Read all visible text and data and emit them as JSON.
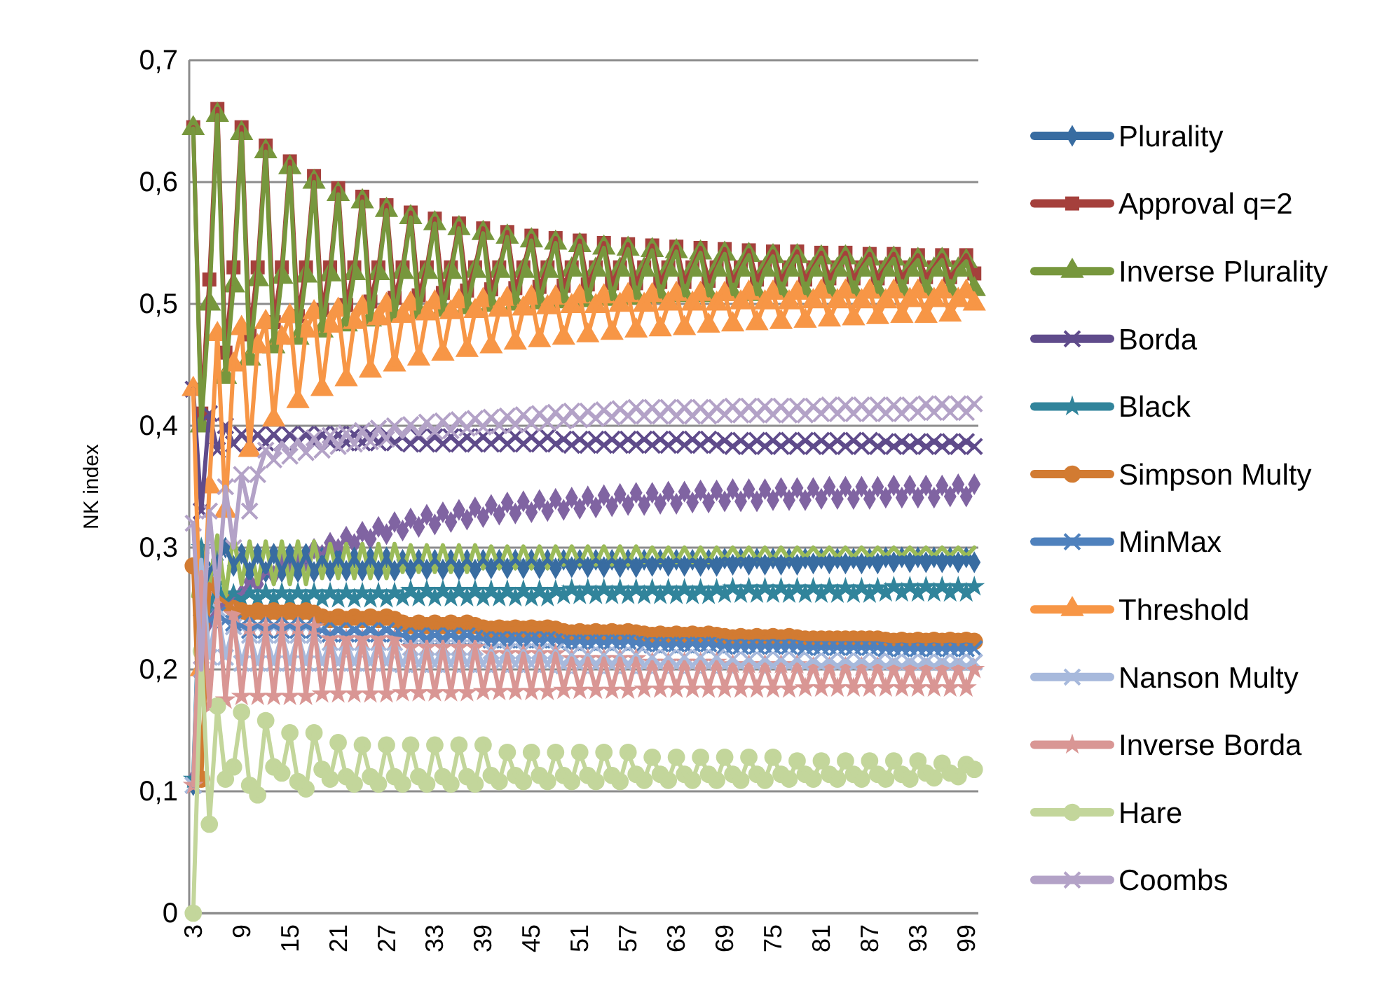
{
  "chart_data": {
    "type": "line",
    "ylabel": "NK index",
    "legend": "right",
    "grid": "y",
    "line_style": "solid",
    "ylim": [
      0,
      0.7
    ],
    "yticks": [
      0,
      {
        "value": 0.1,
        "label": "0,1"
      },
      {
        "value": 0.2,
        "label": "0,2"
      },
      {
        "value": 0.3,
        "label": "0,3"
      },
      {
        "value": 0.4,
        "label": "0,4"
      },
      {
        "value": 0.5,
        "label": "0,5"
      },
      {
        "value": 0.6,
        "label": "0,6"
      },
      {
        "value": 0.7,
        "label": "0,7"
      }
    ],
    "xlim": [
      2.5,
      100.5
    ],
    "xticks": [
      3,
      9,
      15,
      21,
      27,
      33,
      39,
      45,
      51,
      57,
      63,
      69,
      75,
      81,
      87,
      93,
      99
    ],
    "x": [
      3,
      4,
      5,
      6,
      7,
      8,
      9,
      10,
      11,
      12,
      13,
      14,
      15,
      16,
      17,
      18,
      19,
      20,
      21,
      22,
      23,
      24,
      25,
      26,
      27,
      28,
      29,
      30,
      31,
      32,
      33,
      34,
      35,
      36,
      37,
      38,
      39,
      40,
      41,
      42,
      43,
      44,
      45,
      46,
      47,
      48,
      49,
      50,
      51,
      52,
      53,
      54,
      55,
      56,
      57,
      58,
      59,
      60,
      61,
      62,
      63,
      64,
      65,
      66,
      67,
      68,
      69,
      70,
      71,
      72,
      73,
      74,
      75,
      76,
      77,
      78,
      79,
      80,
      81,
      82,
      83,
      84,
      85,
      86,
      87,
      88,
      89,
      90,
      91,
      92,
      93,
      94,
      95,
      96,
      97,
      98,
      99,
      100
    ],
    "series": [
      {
        "color": "#8064a2",
        "marker": "diamond",
        "values": [
          0.11,
          0.2,
          0.24,
          0.25,
          0.255,
          0.26,
          0.262,
          0.272,
          0.27,
          0.28,
          0.277,
          0.287,
          0.283,
          0.293,
          0.289,
          0.299,
          0.294,
          0.304,
          0.299,
          0.309,
          0.303,
          0.313,
          0.307,
          0.317,
          0.311,
          0.321,
          0.314,
          0.324,
          0.317,
          0.327,
          0.319,
          0.329,
          0.321,
          0.331,
          0.323,
          0.333,
          0.325,
          0.335,
          0.327,
          0.337,
          0.328,
          0.338,
          0.329,
          0.339,
          0.33,
          0.34,
          0.331,
          0.341,
          0.332,
          0.342,
          0.333,
          0.343,
          0.334,
          0.344,
          0.335,
          0.345,
          0.335,
          0.345,
          0.336,
          0.346,
          0.336,
          0.346,
          0.337,
          0.347,
          0.337,
          0.347,
          0.338,
          0.348,
          0.338,
          0.348,
          0.338,
          0.348,
          0.339,
          0.349,
          0.339,
          0.349,
          0.339,
          0.349,
          0.34,
          0.35,
          0.34,
          0.35,
          0.34,
          0.35,
          0.34,
          0.35,
          0.341,
          0.351,
          0.341,
          0.351,
          0.341,
          0.351,
          0.341,
          0.351,
          0.342,
          0.352,
          0.342,
          0.352
        ]
      },
      {
        "color": "#9bbb59",
        "marker": "none",
        "values": [
          0.26,
          0.3,
          0.27,
          0.31,
          0.26,
          0.31,
          0.27,
          0.305,
          0.27,
          0.305,
          0.27,
          0.305,
          0.27,
          0.305,
          0.27,
          0.305,
          0.275,
          0.303,
          0.275,
          0.303,
          0.275,
          0.303,
          0.275,
          0.303,
          0.275,
          0.303,
          0.28,
          0.302,
          0.28,
          0.302,
          0.28,
          0.302,
          0.28,
          0.302,
          0.28,
          0.302,
          0.283,
          0.301,
          0.283,
          0.301,
          0.283,
          0.301,
          0.283,
          0.301,
          0.283,
          0.301,
          0.286,
          0.301,
          0.286,
          0.301,
          0.286,
          0.301,
          0.286,
          0.301,
          0.286,
          0.301,
          0.288,
          0.3,
          0.288,
          0.3,
          0.288,
          0.3,
          0.288,
          0.3,
          0.288,
          0.3,
          0.29,
          0.3,
          0.29,
          0.3,
          0.29,
          0.3,
          0.29,
          0.3,
          0.29,
          0.3,
          0.292,
          0.3,
          0.292,
          0.3,
          0.292,
          0.3,
          0.292,
          0.3,
          0.292,
          0.3,
          0.293,
          0.3,
          0.293,
          0.3,
          0.293,
          0.3,
          0.293,
          0.3,
          0.293,
          0.3,
          0.293,
          0.3
        ]
      },
      {
        "name": "Plurality",
        "color": "#386ca1",
        "marker": "diamond",
        "values": [
          0.105,
          0.26,
          0.28,
          0.29,
          0.3,
          0.285,
          0.295,
          0.28,
          0.295,
          0.28,
          0.295,
          0.28,
          0.295,
          0.28,
          0.295,
          0.28,
          0.292,
          0.281,
          0.292,
          0.281,
          0.292,
          0.281,
          0.292,
          0.281,
          0.292,
          0.281,
          0.29,
          0.282,
          0.29,
          0.282,
          0.29,
          0.282,
          0.29,
          0.282,
          0.29,
          0.282,
          0.29,
          0.283,
          0.29,
          0.283,
          0.29,
          0.283,
          0.29,
          0.283,
          0.29,
          0.283,
          0.29,
          0.284,
          0.29,
          0.284,
          0.29,
          0.284,
          0.29,
          0.284,
          0.29,
          0.284,
          0.29,
          0.285,
          0.29,
          0.285,
          0.29,
          0.285,
          0.29,
          0.285,
          0.29,
          0.285,
          0.291,
          0.286,
          0.291,
          0.286,
          0.291,
          0.286,
          0.291,
          0.286,
          0.291,
          0.286,
          0.291,
          0.287,
          0.291,
          0.287,
          0.291,
          0.287,
          0.291,
          0.287,
          0.291,
          0.287,
          0.292,
          0.288,
          0.292,
          0.288,
          0.292,
          0.288,
          0.292,
          0.288,
          0.292,
          0.288,
          0.292,
          0.288
        ]
      },
      {
        "name": "Approval q=2",
        "color": "#a5403c",
        "marker": "square",
        "values": [
          0.645,
          0.41,
          0.52,
          0.66,
          0.46,
          0.53,
          0.645,
          0.475,
          0.53,
          0.63,
          0.485,
          0.53,
          0.617,
          0.49,
          0.53,
          0.605,
          0.495,
          0.53,
          0.595,
          0.499,
          0.53,
          0.588,
          0.502,
          0.53,
          0.581,
          0.505,
          0.53,
          0.575,
          0.507,
          0.53,
          0.57,
          0.509,
          0.53,
          0.566,
          0.511,
          0.53,
          0.562,
          0.512,
          0.53,
          0.559,
          0.513,
          0.53,
          0.556,
          0.514,
          0.53,
          0.554,
          0.515,
          0.53,
          0.552,
          0.516,
          0.53,
          0.55,
          0.517,
          0.53,
          0.549,
          0.517,
          0.53,
          0.548,
          0.518,
          0.53,
          0.547,
          0.518,
          0.53,
          0.546,
          0.519,
          0.53,
          0.545,
          0.519,
          0.53,
          0.544,
          0.52,
          0.53,
          0.543,
          0.52,
          0.53,
          0.543,
          0.52,
          0.53,
          0.542,
          0.521,
          0.53,
          0.542,
          0.521,
          0.53,
          0.541,
          0.521,
          0.53,
          0.541,
          0.522,
          0.53,
          0.54,
          0.522,
          0.53,
          0.54,
          0.522,
          0.53,
          0.54,
          0.525
        ]
      },
      {
        "name": "Inverse Plurality",
        "color": "#77973d",
        "marker": "triangle",
        "values": [
          0.644,
          0.4,
          0.5,
          0.655,
          0.44,
          0.515,
          0.64,
          0.455,
          0.52,
          0.625,
          0.465,
          0.522,
          0.612,
          0.472,
          0.523,
          0.6,
          0.478,
          0.524,
          0.59,
          0.483,
          0.525,
          0.584,
          0.487,
          0.525,
          0.577,
          0.49,
          0.526,
          0.571,
          0.493,
          0.526,
          0.566,
          0.495,
          0.526,
          0.562,
          0.497,
          0.527,
          0.558,
          0.499,
          0.527,
          0.555,
          0.5,
          0.527,
          0.552,
          0.501,
          0.527,
          0.55,
          0.502,
          0.528,
          0.548,
          0.503,
          0.528,
          0.546,
          0.504,
          0.528,
          0.545,
          0.505,
          0.528,
          0.544,
          0.506,
          0.528,
          0.543,
          0.507,
          0.528,
          0.542,
          0.507,
          0.528,
          0.541,
          0.508,
          0.528,
          0.54,
          0.508,
          0.528,
          0.539,
          0.509,
          0.528,
          0.539,
          0.509,
          0.528,
          0.538,
          0.51,
          0.528,
          0.538,
          0.51,
          0.528,
          0.537,
          0.51,
          0.528,
          0.537,
          0.511,
          0.528,
          0.536,
          0.511,
          0.528,
          0.536,
          0.511,
          0.528,
          0.535,
          0.512
        ]
      },
      {
        "name": "Borda",
        "color": "#5f4b8b",
        "marker": "cross",
        "values": [
          0.43,
          0.33,
          0.41,
          0.38,
          0.4,
          0.385,
          0.393,
          0.386,
          0.393,
          0.386,
          0.393,
          0.386,
          0.393,
          0.386,
          0.393,
          0.386,
          0.393,
          0.386,
          0.393,
          0.386,
          0.393,
          0.386,
          0.393,
          0.386,
          0.393,
          0.386,
          0.391,
          0.385,
          0.391,
          0.385,
          0.391,
          0.385,
          0.391,
          0.385,
          0.391,
          0.385,
          0.391,
          0.385,
          0.391,
          0.385,
          0.391,
          0.385,
          0.391,
          0.385,
          0.391,
          0.385,
          0.389,
          0.384,
          0.389,
          0.384,
          0.389,
          0.384,
          0.389,
          0.384,
          0.389,
          0.384,
          0.389,
          0.384,
          0.389,
          0.384,
          0.389,
          0.384,
          0.389,
          0.384,
          0.389,
          0.384,
          0.388,
          0.383,
          0.388,
          0.383,
          0.388,
          0.383,
          0.388,
          0.383,
          0.388,
          0.383,
          0.388,
          0.383,
          0.388,
          0.383,
          0.388,
          0.383,
          0.388,
          0.383,
          0.388,
          0.383,
          0.387,
          0.383,
          0.387,
          0.383,
          0.387,
          0.383,
          0.387,
          0.383,
          0.387,
          0.383,
          0.387,
          0.383
        ]
      },
      {
        "name": "Black",
        "color": "#31849b",
        "marker": "star",
        "values": [
          0.11,
          0.3,
          0.25,
          0.27,
          0.255,
          0.262,
          0.258,
          0.263,
          0.258,
          0.263,
          0.258,
          0.263,
          0.258,
          0.263,
          0.258,
          0.263,
          0.258,
          0.263,
          0.258,
          0.263,
          0.258,
          0.263,
          0.258,
          0.263,
          0.258,
          0.263,
          0.259,
          0.265,
          0.259,
          0.265,
          0.259,
          0.265,
          0.259,
          0.265,
          0.259,
          0.265,
          0.259,
          0.265,
          0.259,
          0.265,
          0.259,
          0.265,
          0.259,
          0.265,
          0.259,
          0.265,
          0.261,
          0.266,
          0.261,
          0.266,
          0.261,
          0.266,
          0.261,
          0.266,
          0.261,
          0.266,
          0.261,
          0.266,
          0.261,
          0.266,
          0.261,
          0.266,
          0.261,
          0.266,
          0.261,
          0.266,
          0.262,
          0.267,
          0.262,
          0.267,
          0.262,
          0.267,
          0.262,
          0.267,
          0.262,
          0.267,
          0.262,
          0.267,
          0.262,
          0.267,
          0.262,
          0.267,
          0.262,
          0.267,
          0.262,
          0.267,
          0.263,
          0.268,
          0.263,
          0.268,
          0.263,
          0.268,
          0.263,
          0.268,
          0.263,
          0.268,
          0.263,
          0.268
        ]
      },
      {
        "name": "Simpson Multy",
        "color": "#d27b32",
        "marker": "circle",
        "values": [
          0.285,
          0.11,
          0.27,
          0.26,
          0.255,
          0.25,
          0.248,
          0.246,
          0.248,
          0.246,
          0.248,
          0.246,
          0.248,
          0.246,
          0.248,
          0.246,
          0.243,
          0.241,
          0.243,
          0.241,
          0.243,
          0.241,
          0.243,
          0.241,
          0.243,
          0.241,
          0.238,
          0.236,
          0.238,
          0.236,
          0.238,
          0.236,
          0.238,
          0.236,
          0.238,
          0.236,
          0.234,
          0.233,
          0.234,
          0.233,
          0.234,
          0.233,
          0.234,
          0.233,
          0.234,
          0.233,
          0.231,
          0.23,
          0.231,
          0.23,
          0.231,
          0.23,
          0.231,
          0.23,
          0.231,
          0.23,
          0.229,
          0.228,
          0.229,
          0.228,
          0.229,
          0.228,
          0.229,
          0.228,
          0.229,
          0.228,
          0.227,
          0.226,
          0.227,
          0.226,
          0.227,
          0.226,
          0.227,
          0.226,
          0.227,
          0.226,
          0.225,
          0.225,
          0.225,
          0.225,
          0.225,
          0.225,
          0.225,
          0.225,
          0.225,
          0.225,
          0.224,
          0.223,
          0.224,
          0.223,
          0.224,
          0.223,
          0.224,
          0.223,
          0.224,
          0.223,
          0.224,
          0.223
        ]
      },
      {
        "name": "MinMax",
        "color": "#4f81bd",
        "marker": "cross",
        "values": [
          0.105,
          0.25,
          0.24,
          0.245,
          0.24,
          0.238,
          0.236,
          0.232,
          0.236,
          0.232,
          0.236,
          0.232,
          0.236,
          0.232,
          0.236,
          0.232,
          0.232,
          0.229,
          0.232,
          0.229,
          0.232,
          0.229,
          0.232,
          0.229,
          0.232,
          0.229,
          0.228,
          0.226,
          0.228,
          0.226,
          0.228,
          0.226,
          0.228,
          0.226,
          0.228,
          0.226,
          0.225,
          0.224,
          0.225,
          0.224,
          0.225,
          0.224,
          0.225,
          0.224,
          0.225,
          0.224,
          0.223,
          0.222,
          0.223,
          0.222,
          0.223,
          0.222,
          0.223,
          0.222,
          0.223,
          0.222,
          0.221,
          0.22,
          0.221,
          0.22,
          0.221,
          0.22,
          0.221,
          0.22,
          0.221,
          0.22,
          0.219,
          0.219,
          0.219,
          0.219,
          0.219,
          0.219,
          0.219,
          0.219,
          0.219,
          0.219,
          0.218,
          0.218,
          0.218,
          0.218,
          0.218,
          0.218,
          0.218,
          0.218,
          0.218,
          0.218,
          0.217,
          0.217,
          0.217,
          0.217,
          0.217,
          0.217,
          0.217,
          0.217,
          0.217,
          0.217,
          0.217,
          0.217
        ]
      },
      {
        "name": "Threshold",
        "color": "#f79646",
        "marker": "triangle",
        "values": [
          0.43,
          0.2,
          0.35,
          0.475,
          0.33,
          0.45,
          0.48,
          0.38,
          0.465,
          0.485,
          0.405,
          0.472,
          0.49,
          0.42,
          0.478,
          0.493,
          0.43,
          0.482,
          0.495,
          0.438,
          0.485,
          0.497,
          0.445,
          0.488,
          0.499,
          0.45,
          0.49,
          0.5,
          0.455,
          0.492,
          0.501,
          0.459,
          0.493,
          0.502,
          0.462,
          0.494,
          0.503,
          0.465,
          0.495,
          0.504,
          0.468,
          0.496,
          0.505,
          0.47,
          0.497,
          0.505,
          0.472,
          0.498,
          0.506,
          0.474,
          0.498,
          0.506,
          0.476,
          0.499,
          0.507,
          0.478,
          0.499,
          0.507,
          0.479,
          0.5,
          0.508,
          0.48,
          0.5,
          0.508,
          0.482,
          0.5,
          0.508,
          0.483,
          0.501,
          0.509,
          0.484,
          0.501,
          0.509,
          0.485,
          0.501,
          0.509,
          0.486,
          0.502,
          0.51,
          0.487,
          0.502,
          0.51,
          0.488,
          0.502,
          0.51,
          0.489,
          0.502,
          0.51,
          0.49,
          0.503,
          0.51,
          0.49,
          0.503,
          0.51,
          0.491,
          0.503,
          0.51,
          0.5
        ]
      },
      {
        "name": "Nanson Multy",
        "color": "#a7b9dc",
        "marker": "cross",
        "values": [
          0.105,
          0.29,
          0.21,
          0.25,
          0.21,
          0.235,
          0.205,
          0.228,
          0.205,
          0.228,
          0.205,
          0.228,
          0.205,
          0.228,
          0.205,
          0.228,
          0.205,
          0.222,
          0.205,
          0.222,
          0.205,
          0.222,
          0.205,
          0.222,
          0.205,
          0.222,
          0.204,
          0.218,
          0.204,
          0.218,
          0.204,
          0.218,
          0.204,
          0.218,
          0.204,
          0.218,
          0.204,
          0.215,
          0.204,
          0.215,
          0.204,
          0.215,
          0.204,
          0.215,
          0.204,
          0.215,
          0.203,
          0.212,
          0.203,
          0.212,
          0.203,
          0.212,
          0.203,
          0.212,
          0.203,
          0.212,
          0.203,
          0.21,
          0.203,
          0.21,
          0.203,
          0.21,
          0.203,
          0.21,
          0.203,
          0.21,
          0.203,
          0.208,
          0.203,
          0.208,
          0.203,
          0.208,
          0.203,
          0.208,
          0.203,
          0.208,
          0.203,
          0.207,
          0.203,
          0.207,
          0.203,
          0.207,
          0.203,
          0.207,
          0.203,
          0.207,
          0.203,
          0.206,
          0.203,
          0.206,
          0.203,
          0.206,
          0.203,
          0.206,
          0.203,
          0.206,
          0.203,
          0.206
        ]
      },
      {
        "name": "Inverse Borda",
        "color": "#d99694",
        "marker": "star",
        "values": [
          0.105,
          0.28,
          0.17,
          0.26,
          0.175,
          0.245,
          0.178,
          0.235,
          0.178,
          0.235,
          0.178,
          0.235,
          0.178,
          0.235,
          0.178,
          0.235,
          0.18,
          0.225,
          0.18,
          0.225,
          0.18,
          0.225,
          0.18,
          0.225,
          0.18,
          0.225,
          0.181,
          0.218,
          0.181,
          0.218,
          0.181,
          0.218,
          0.181,
          0.218,
          0.181,
          0.218,
          0.182,
          0.213,
          0.182,
          0.213,
          0.182,
          0.213,
          0.182,
          0.213,
          0.182,
          0.213,
          0.183,
          0.209,
          0.183,
          0.209,
          0.183,
          0.209,
          0.183,
          0.209,
          0.183,
          0.209,
          0.184,
          0.206,
          0.184,
          0.206,
          0.184,
          0.206,
          0.184,
          0.206,
          0.184,
          0.206,
          0.184,
          0.204,
          0.184,
          0.204,
          0.184,
          0.204,
          0.184,
          0.204,
          0.184,
          0.204,
          0.185,
          0.202,
          0.185,
          0.202,
          0.185,
          0.202,
          0.185,
          0.202,
          0.185,
          0.202,
          0.185,
          0.2,
          0.185,
          0.2,
          0.185,
          0.2,
          0.185,
          0.2,
          0.185,
          0.2,
          0.185,
          0.2
        ]
      },
      {
        "name": "Hare",
        "color": "#c3d69b",
        "marker": "circle",
        "values": [
          0,
          0.215,
          0.073,
          0.17,
          0.11,
          0.12,
          0.165,
          0.105,
          0.097,
          0.158,
          0.12,
          0.115,
          0.148,
          0.108,
          0.102,
          0.148,
          0.118,
          0.11,
          0.14,
          0.112,
          0.106,
          0.138,
          0.112,
          0.106,
          0.138,
          0.112,
          0.106,
          0.138,
          0.112,
          0.106,
          0.138,
          0.112,
          0.106,
          0.138,
          0.112,
          0.106,
          0.138,
          0.113,
          0.108,
          0.132,
          0.113,
          0.108,
          0.132,
          0.113,
          0.108,
          0.132,
          0.113,
          0.108,
          0.132,
          0.113,
          0.108,
          0.132,
          0.113,
          0.108,
          0.132,
          0.114,
          0.109,
          0.128,
          0.114,
          0.109,
          0.128,
          0.114,
          0.109,
          0.128,
          0.114,
          0.109,
          0.128,
          0.114,
          0.109,
          0.128,
          0.114,
          0.109,
          0.128,
          0.114,
          0.11,
          0.125,
          0.114,
          0.11,
          0.125,
          0.114,
          0.11,
          0.125,
          0.114,
          0.11,
          0.125,
          0.114,
          0.11,
          0.125,
          0.114,
          0.11,
          0.125,
          0.115,
          0.111,
          0.123,
          0.115,
          0.112,
          0.122,
          0.118
        ]
      },
      {
        "name": "Coombs",
        "color": "#b3a2c7",
        "marker": "cross",
        "values": [
          0.32,
          0.2,
          0.33,
          0.26,
          0.35,
          0.3,
          0.36,
          0.33,
          0.36,
          0.38,
          0.372,
          0.386,
          0.375,
          0.388,
          0.378,
          0.39,
          0.38,
          0.392,
          0.383,
          0.394,
          0.385,
          0.396,
          0.387,
          0.398,
          0.389,
          0.4,
          0.391,
          0.401,
          0.393,
          0.403,
          0.395,
          0.404,
          0.396,
          0.405,
          0.398,
          0.406,
          0.399,
          0.407,
          0.4,
          0.408,
          0.401,
          0.409,
          0.402,
          0.41,
          0.403,
          0.411,
          0.404,
          0.412,
          0.405,
          0.412,
          0.406,
          0.413,
          0.407,
          0.414,
          0.408,
          0.415,
          0.408,
          0.415,
          0.408,
          0.415,
          0.408,
          0.415,
          0.408,
          0.415,
          0.408,
          0.415,
          0.409,
          0.416,
          0.409,
          0.416,
          0.409,
          0.416,
          0.409,
          0.416,
          0.409,
          0.416,
          0.409,
          0.416,
          0.41,
          0.417,
          0.41,
          0.417,
          0.41,
          0.417,
          0.41,
          0.417,
          0.41,
          0.417,
          0.41,
          0.417,
          0.411,
          0.418,
          0.411,
          0.418,
          0.411,
          0.418,
          0.411,
          0.418
        ]
      }
    ]
  }
}
